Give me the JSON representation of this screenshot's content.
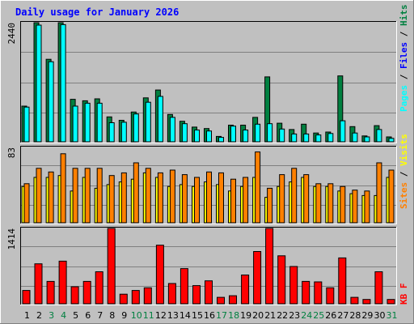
{
  "chart_data": {
    "type": "bar",
    "title": "Daily usage for January 2026",
    "categories": [
      "1",
      "2",
      "3",
      "4",
      "5",
      "6",
      "7",
      "8",
      "9",
      "10",
      "11",
      "12",
      "13",
      "14",
      "15",
      "16",
      "17",
      "18",
      "19",
      "20",
      "21",
      "22",
      "23",
      "24",
      "25",
      "26",
      "27",
      "28",
      "29",
      "30",
      "31"
    ],
    "weekend_days": [
      "3",
      "4",
      "10",
      "11",
      "17",
      "18",
      "24",
      "25",
      "31"
    ],
    "panels": [
      {
        "id": "hits",
        "ymax_label": "2440",
        "ymax": 2440,
        "series": [
          {
            "name": "Hits",
            "color": "#008040",
            "values": [
              730,
              2440,
              1690,
              2440,
              870,
              840,
              880,
              510,
              440,
              610,
              900,
              1060,
              560,
              420,
              300,
              270,
              110,
              340,
              340,
              500,
              1330,
              380,
              250,
              360,
              180,
              200,
              1350,
              310,
              120,
              330,
              100
            ]
          },
          {
            "name": "Files",
            "color": "#0000ff",
            "values": [],
            "legend_only": true
          },
          {
            "name": "Pages",
            "color": "#00ffff",
            "values": [
              710,
              2390,
              1640,
              2400,
              730,
              790,
              790,
              390,
              400,
              570,
              810,
              930,
              500,
              370,
              240,
              220,
              90,
              320,
              240,
              360,
              370,
              260,
              160,
              160,
              140,
              170,
              430,
              180,
              100,
              250,
              70
            ]
          }
        ]
      },
      {
        "id": "visits",
        "ymax_label": "83",
        "ymax": 83,
        "series": [
          {
            "name": "Visits",
            "color": "#ffff00",
            "values": [
              40,
              50,
              50,
              52,
              35,
              50,
              38,
              42,
              45,
              48,
              55,
              50,
              40,
              42,
              40,
              45,
              42,
              35,
              40,
              50,
              28,
              40,
              45,
              50,
              40,
              40,
              35,
              32,
              30,
              30,
              50
            ]
          },
          {
            "name": "Sites",
            "color": "#ff8000",
            "values": [
              43,
              60,
              56,
              76,
              60,
              60,
              60,
              52,
              55,
              66,
              60,
              55,
              58,
              53,
              50,
              56,
              55,
              48,
              50,
              78,
              38,
              53,
              60,
              53,
              43,
              43,
              40,
              36,
              35,
              66,
              58
            ]
          }
        ]
      },
      {
        "id": "kbytes",
        "ymax_label": "1414",
        "ymax": 1414,
        "series": [
          {
            "name": "KB F",
            "color": "#ff0000",
            "values": [
              250,
              750,
              420,
              800,
              320,
              420,
              600,
              1414,
              180,
              250,
              300,
              1100,
              380,
              660,
              340,
              430,
              120,
              150,
              540,
              980,
              1414,
              900,
              700,
              420,
              410,
              300,
              860,
              120,
              80,
              600,
              80
            ]
          }
        ]
      }
    ],
    "legend": {
      "top": [
        {
          "text": "Pages",
          "color": "#00ffff"
        },
        {
          "text": "Files",
          "color": "#0000ff"
        },
        {
          "text": "Hits",
          "color": "#008040"
        }
      ],
      "mid": [
        {
          "text": "Sites",
          "color": "#ff8000"
        },
        {
          "text": "Visits",
          "color": "#ffff00"
        }
      ],
      "bottom": [
        {
          "text": "KB F",
          "color": "#ff0000"
        }
      ]
    },
    "colors": {
      "background": "#c0c0c0",
      "plot_background": "#c0c0c0",
      "title": "#0000ff",
      "weekday_label": "#000000",
      "weekend_label": "#008040",
      "gridline": "#808080"
    }
  }
}
